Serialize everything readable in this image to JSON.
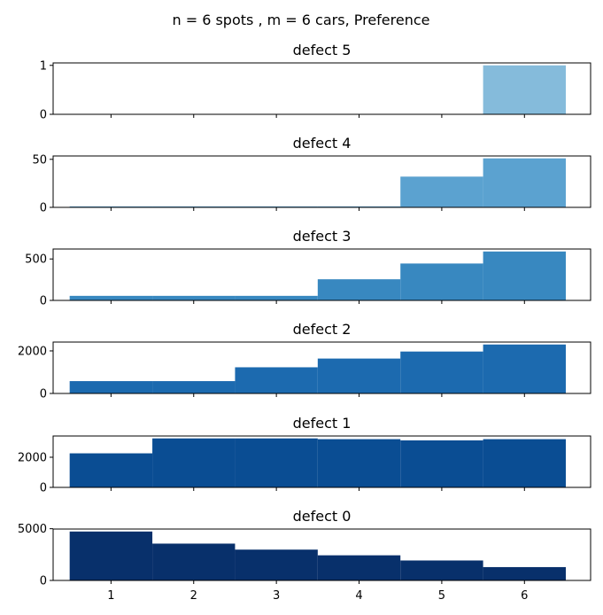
{
  "chart_data": {
    "type": "bar",
    "title": "n = 6 spots , m = 6 cars, Preference",
    "categories": [
      "1",
      "2",
      "3",
      "4",
      "5",
      "6"
    ],
    "x": [
      1,
      2,
      3,
      4,
      5,
      6
    ],
    "xlim": [
      0.3,
      6.8
    ],
    "grid": false,
    "panels": [
      {
        "title": "defect 5",
        "values": [
          0,
          0,
          0,
          0,
          0,
          1
        ],
        "ylim": [
          0,
          1.05
        ],
        "yticks": [
          0,
          1
        ],
        "color": "#85bbdb"
      },
      {
        "title": "defect 4",
        "values": [
          1,
          1,
          1,
          1,
          32,
          51
        ],
        "ylim": [
          0,
          53.5
        ],
        "yticks": [
          0,
          50
        ],
        "color": "#5ba2d0"
      },
      {
        "title": "defect 3",
        "values": [
          55,
          55,
          55,
          255,
          445,
          590
        ],
        "ylim": [
          0,
          620
        ],
        "yticks": [
          0,
          500
        ],
        "color": "#3888c0"
      },
      {
        "title": "defect 2",
        "values": [
          580,
          580,
          1230,
          1640,
          1970,
          2300
        ],
        "ylim": [
          0,
          2415
        ],
        "yticks": [
          0,
          2000
        ],
        "color": "#1c6aaf"
      },
      {
        "title": "defect 1",
        "values": [
          2260,
          3250,
          3250,
          3200,
          3120,
          3200
        ],
        "ylim": [
          0,
          3410
        ],
        "yticks": [
          0,
          2000
        ],
        "color": "#0a4d93"
      },
      {
        "title": "defect 0",
        "values": [
          4730,
          3560,
          2980,
          2430,
          1930,
          1290
        ],
        "ylim": [
          0,
          4970
        ],
        "yticks": [
          0,
          5000
        ],
        "color": "#08306b"
      }
    ]
  }
}
